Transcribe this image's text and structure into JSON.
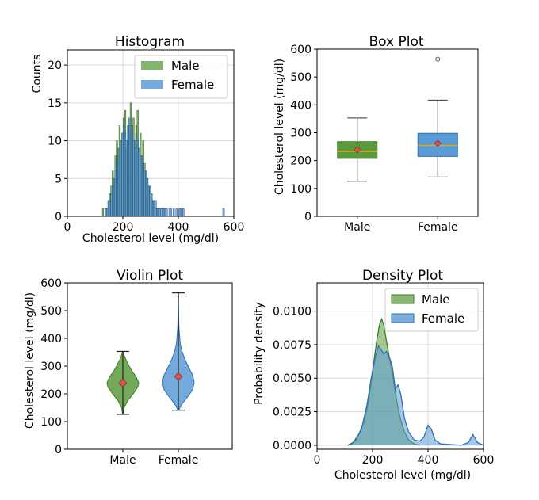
{
  "colors": {
    "male": "#5a9a3c",
    "male_edge": "#3c7d22",
    "female": "#5b9bd5",
    "female_edge": "#2f6fb2",
    "grid": "#d9d9d9",
    "mean_marker": "#d9534f",
    "median_line": "#e8a317"
  },
  "chart_data": [
    {
      "type": "histogram",
      "title": "Histogram",
      "xlabel": "Cholesterol level (mg/dl)",
      "ylabel": "Counts",
      "xlim": [
        0,
        600
      ],
      "ylim": [
        0,
        22
      ],
      "xticks": [
        0,
        200,
        400,
        600
      ],
      "yticks": [
        0,
        5,
        10,
        15,
        20
      ],
      "grid": true,
      "legend_position": "top-right",
      "bin_edges": [
        126,
        131,
        136,
        141,
        146,
        151,
        156,
        161,
        166,
        171,
        176,
        181,
        186,
        191,
        196,
        201,
        206,
        211,
        216,
        221,
        226,
        231,
        236,
        241,
        246,
        251,
        256,
        261,
        266,
        271,
        276,
        281,
        286,
        291,
        296,
        301,
        306,
        311,
        316,
        321,
        326,
        331,
        336,
        341,
        346,
        351,
        356
      ],
      "series": [
        {
          "name": "Male",
          "counts": [
            1,
            0,
            1,
            0,
            2,
            3,
            4,
            6,
            5,
            8,
            10,
            9,
            12,
            10,
            11,
            13,
            14,
            9,
            10,
            12,
            15,
            11,
            13,
            10,
            12,
            14,
            9,
            11,
            8,
            10,
            7,
            6,
            5,
            4,
            4,
            3,
            2,
            2,
            1,
            1,
            1,
            0,
            0,
            1,
            0,
            1
          ]
        },
        {
          "name": "Female",
          "extra_bins": [
            [
              356,
              361,
              1
            ],
            [
              361,
              366,
              0
            ],
            [
              366,
              371,
              1
            ],
            [
              371,
              376,
              1
            ],
            [
              376,
              381,
              0
            ],
            [
              381,
              386,
              1
            ],
            [
              386,
              391,
              0
            ],
            [
              391,
              396,
              1
            ],
            [
              396,
              401,
              0
            ],
            [
              401,
              406,
              1
            ],
            [
              406,
              411,
              1
            ],
            [
              411,
              416,
              1
            ],
            [
              416,
              421,
              1
            ],
            [
              560,
              566,
              1
            ]
          ],
          "counts": [
            0,
            0,
            1,
            1,
            2,
            2,
            3,
            4,
            5,
            6,
            8,
            7,
            9,
            10,
            11,
            12,
            11,
            10,
            12,
            13,
            11,
            12,
            10,
            9,
            11,
            10,
            9,
            8,
            8,
            7,
            6,
            6,
            5,
            4,
            4,
            3,
            2,
            2,
            2,
            1,
            1,
            1,
            1,
            1,
            1,
            1
          ]
        }
      ]
    },
    {
      "type": "box",
      "title": "Box Plot",
      "xlabel": "",
      "ylabel": "Cholesterol level (mg/dl)",
      "ylim": [
        0,
        600
      ],
      "yticks": [
        0,
        100,
        200,
        300,
        400,
        500,
        600
      ],
      "categories": [
        "Male",
        "Female"
      ],
      "series": [
        {
          "name": "Male",
          "whisker_low": 126,
          "q1": 208,
          "median": 233,
          "q3": 268,
          "whisker_high": 353,
          "mean": 239,
          "outliers": []
        },
        {
          "name": "Female",
          "whisker_low": 141,
          "q1": 215,
          "median": 254,
          "q3": 298,
          "whisker_high": 417,
          "mean": 262,
          "outliers": [
            564
          ]
        }
      ]
    },
    {
      "type": "violin",
      "title": "Violin Plot",
      "xlabel": "",
      "ylabel": "Cholesterol level (mg/dl)",
      "ylim": [
        0,
        600
      ],
      "yticks": [
        0,
        100,
        200,
        300,
        400,
        500,
        600
      ],
      "categories": [
        "Male",
        "Female"
      ],
      "series": [
        {
          "name": "Male",
          "min": 126,
          "max": 353,
          "mean": 239,
          "profile": [
            [
              126,
              0.02
            ],
            [
              150,
              0.08
            ],
            [
              175,
              0.3
            ],
            [
              200,
              0.65
            ],
            [
              225,
              0.95
            ],
            [
              240,
              1.0
            ],
            [
              260,
              0.85
            ],
            [
              280,
              0.6
            ],
            [
              300,
              0.4
            ],
            [
              320,
              0.22
            ],
            [
              340,
              0.08
            ],
            [
              353,
              0.02
            ]
          ]
        },
        {
          "name": "Female",
          "min": 141,
          "max": 564,
          "mean": 262,
          "profile": [
            [
              141,
              0.02
            ],
            [
              165,
              0.25
            ],
            [
              190,
              0.6
            ],
            [
              215,
              0.9
            ],
            [
              240,
              1.0
            ],
            [
              265,
              0.92
            ],
            [
              290,
              0.7
            ],
            [
              320,
              0.45
            ],
            [
              350,
              0.25
            ],
            [
              380,
              0.12
            ],
            [
              410,
              0.08
            ],
            [
              440,
              0.04
            ],
            [
              480,
              0.02
            ],
            [
              520,
              0.01
            ],
            [
              564,
              0.005
            ]
          ]
        }
      ]
    },
    {
      "type": "area",
      "title": "Density Plot",
      "xlabel": "Cholesterol level (mg/dl)",
      "ylabel": "Probability density",
      "xlim": [
        0,
        600
      ],
      "ylim": [
        -0.0003,
        0.0121
      ],
      "xticks": [
        0,
        200,
        400,
        600
      ],
      "yticks": [
        "0.0000",
        "0.0025",
        "0.0050",
        "0.0075",
        "0.0100"
      ],
      "grid": true,
      "legend_position": "top-right",
      "series": [
        {
          "name": "Male",
          "points": [
            [
              110,
              0
            ],
            [
              130,
              0.0002
            ],
            [
              150,
              0.0008
            ],
            [
              170,
              0.0018
            ],
            [
              185,
              0.0032
            ],
            [
              200,
              0.0055
            ],
            [
              215,
              0.0078
            ],
            [
              225,
              0.009
            ],
            [
              233,
              0.0094
            ],
            [
              240,
              0.009
            ],
            [
              250,
              0.0078
            ],
            [
              260,
              0.0066
            ],
            [
              270,
              0.0055
            ],
            [
              280,
              0.0042
            ],
            [
              290,
              0.003
            ],
            [
              300,
              0.002
            ],
            [
              315,
              0.001
            ],
            [
              330,
              0.0004
            ],
            [
              350,
              0.0001
            ],
            [
              370,
              0
            ]
          ]
        },
        {
          "name": "Female",
          "points": [
            [
              120,
              0
            ],
            [
              140,
              0.0004
            ],
            [
              160,
              0.0012
            ],
            [
              180,
              0.003
            ],
            [
              195,
              0.005
            ],
            [
              210,
              0.0066
            ],
            [
              222,
              0.0074
            ],
            [
              232,
              0.0071
            ],
            [
              240,
              0.0068
            ],
            [
              250,
              0.007
            ],
            [
              262,
              0.0065
            ],
            [
              272,
              0.0058
            ],
            [
              282,
              0.0042
            ],
            [
              292,
              0.0045
            ],
            [
              302,
              0.0038
            ],
            [
              315,
              0.002
            ],
            [
              330,
              0.001
            ],
            [
              350,
              0.0004
            ],
            [
              370,
              0.0003
            ],
            [
              385,
              0.0006
            ],
            [
              400,
              0.0015
            ],
            [
              412,
              0.0012
            ],
            [
              425,
              0.0004
            ],
            [
              445,
              0.0001
            ],
            [
              520,
              0
            ],
            [
              545,
              0.0002
            ],
            [
              562,
              0.0008
            ],
            [
              578,
              0.0002
            ],
            [
              600,
              0
            ]
          ]
        }
      ]
    }
  ]
}
